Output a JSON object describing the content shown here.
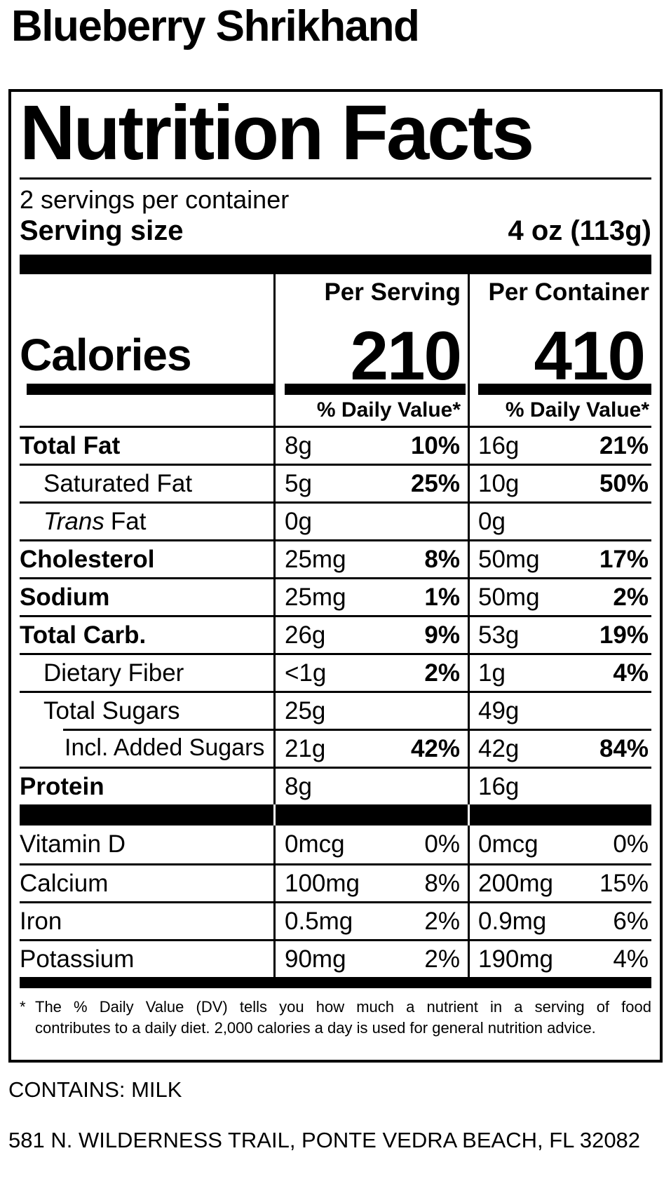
{
  "page": {
    "title": "Blueberry Shrikhand",
    "contains": "CONTAINS: MILK",
    "address": "581 N. WILDERNESS TRAIL, PONTE VEDRA BEACH, FL 32082"
  },
  "label": {
    "heading": "Nutrition Facts",
    "servings_per_container": "2 servings per container",
    "serving_size": {
      "label": "Serving size",
      "value": "4 oz (113g)"
    },
    "calories": {
      "label": "Calories",
      "per_serving_header": "Per Serving",
      "per_container_header": "Per Container",
      "per_serving": "210",
      "per_container": "410"
    },
    "daily_value_header": "% Daily Value*",
    "nutrients": [
      {
        "name": "Total Fat",
        "serving": {
          "amount": "8g",
          "dv": "10%"
        },
        "container": {
          "amount": "16g",
          "dv": "21%"
        }
      },
      {
        "name": "Saturated Fat",
        "serving": {
          "amount": "5g",
          "dv": "25%"
        },
        "container": {
          "amount": "10g",
          "dv": "50%"
        }
      },
      {
        "name": {
          "it": "Trans",
          "rest": "Fat"
        },
        "serving": {
          "amount": "0g",
          "dv": ""
        },
        "container": {
          "amount": "0g",
          "dv": ""
        }
      },
      {
        "name": "Cholesterol",
        "serving": {
          "amount": "25mg",
          "dv": "8%"
        },
        "container": {
          "amount": "50mg",
          "dv": "17%"
        }
      },
      {
        "name": "Sodium",
        "serving": {
          "amount": "25mg",
          "dv": "1%"
        },
        "container": {
          "amount": "50mg",
          "dv": "2%"
        }
      },
      {
        "name": "Total Carb.",
        "serving": {
          "amount": "26g",
          "dv": "9%"
        },
        "container": {
          "amount": "53g",
          "dv": "19%"
        }
      },
      {
        "name": "Dietary Fiber",
        "serving": {
          "amount": "<1g",
          "dv": "2%"
        },
        "container": {
          "amount": "1g",
          "dv": "4%"
        }
      },
      {
        "name": "Total Sugars",
        "serving": {
          "amount": "25g",
          "dv": ""
        },
        "container": {
          "amount": "49g",
          "dv": ""
        }
      },
      {
        "name": "Incl. Added Sugars",
        "serving": {
          "amount": "21g",
          "dv": "42%"
        },
        "container": {
          "amount": "42g",
          "dv": "84%"
        }
      },
      {
        "name": "Protein",
        "serving": {
          "amount": "8g",
          "dv": ""
        },
        "container": {
          "amount": "16g",
          "dv": ""
        }
      }
    ],
    "vitamins": [
      {
        "name": "Vitamin D",
        "serving": {
          "amount": "0mcg",
          "dv": "0%"
        },
        "container": {
          "amount": "0mcg",
          "dv": "0%"
        }
      },
      {
        "name": "Calcium",
        "serving": {
          "amount": "100mg",
          "dv": "8%"
        },
        "container": {
          "amount": "200mg",
          "dv": "15%"
        }
      },
      {
        "name": "Iron",
        "serving": {
          "amount": "0.5mg",
          "dv": "2%"
        },
        "container": {
          "amount": "0.9mg",
          "dv": "6%"
        }
      },
      {
        "name": "Potassium",
        "serving": {
          "amount": "90mg",
          "dv": "2%"
        },
        "container": {
          "amount": "190mg",
          "dv": "4%"
        }
      }
    ],
    "footnote": {
      "symbol": "*",
      "line1": "The % Daily Value (DV) tells you how much a nutrient in a serving of food",
      "line2": "contributes to a daily diet. 2,000 calories a day is used for general nutrition advice."
    }
  },
  "colors": {
    "ink": "#000000",
    "paper": "#ffffff"
  }
}
